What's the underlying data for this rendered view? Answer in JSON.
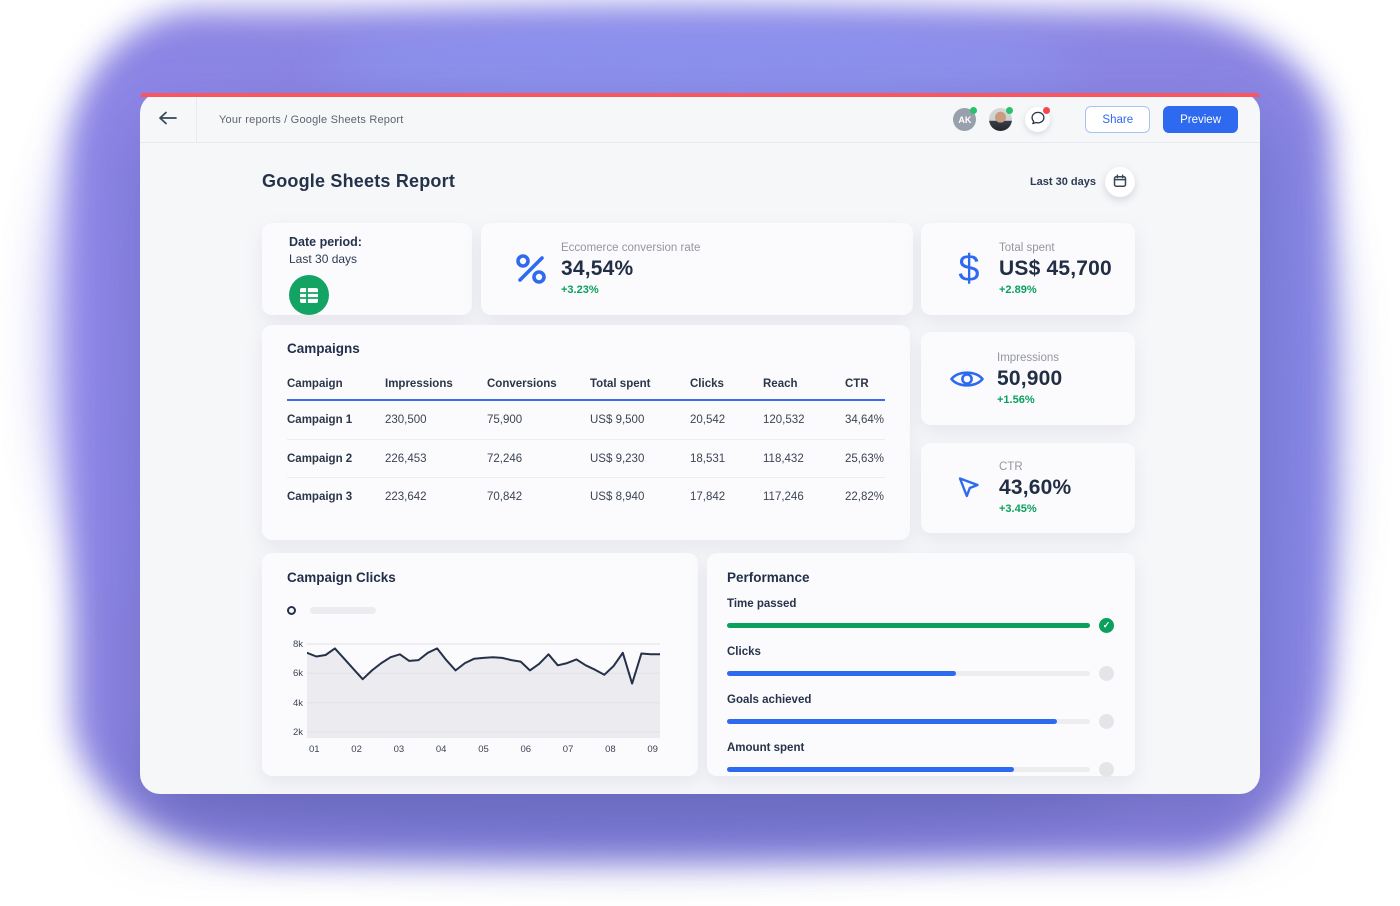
{
  "colors": {
    "accent_blue": "#2e6af0",
    "delta_green": "#0a9f5d",
    "progress_green": "#0ba05c",
    "red_accent_bar": "#fb5560",
    "blob_purple": "#8a87e6",
    "navy_text": "#24324a",
    "sheets_green": "#13a464"
  },
  "icons": {
    "back": "arrow-left-icon",
    "messages": "chat-bubble-icon",
    "calendar": "calendar-icon",
    "date_period_card": "spreadsheet-grid-icon",
    "conversion_card": "percent-icon",
    "total_spent_card": "dollar-icon",
    "impressions_card": "eye-icon",
    "ctr_card": "cursor-arrow-icon",
    "time_passed_indicator": "check-circle-icon"
  },
  "topbar": {
    "breadcrumb": "Your reports / Google Sheets Report",
    "avatar_initials": "AK",
    "share_label": "Share",
    "preview_label": "Preview"
  },
  "header": {
    "title": "Google Sheets Report",
    "date_range": "Last 30 days"
  },
  "cards": {
    "date_period": {
      "label": "Date period:",
      "value": "Last 30 days"
    },
    "conversion": {
      "label": "Eccomerce conversion rate",
      "value": "34,54%",
      "delta": "+3.23%"
    },
    "total_spent": {
      "label": "Total spent",
      "value": "US$ 45,700",
      "delta": "+2.89%"
    },
    "impressions": {
      "label": "Impressions",
      "value": "50,900",
      "delta": "+1.56%"
    },
    "ctr": {
      "label": "CTR",
      "value": "43,60%",
      "delta": "+3.45%"
    }
  },
  "campaigns": {
    "title": "Campaigns",
    "columns": [
      "Campaign",
      "Impressions",
      "Conversions",
      "Total spent",
      "Clicks",
      "Reach",
      "CTR"
    ],
    "rows": [
      {
        "campaign": "Campaign 1",
        "impressions": "230,500",
        "conversions": "75,900",
        "total_spent": "US$ 9,500",
        "clicks": "20,542",
        "reach": "120,532",
        "ctr": "34,64%"
      },
      {
        "campaign": "Campaign 2",
        "impressions": "226,453",
        "conversions": "72,246",
        "total_spent": "US$ 9,230",
        "clicks": "18,531",
        "reach": "118,432",
        "ctr": "25,63%"
      },
      {
        "campaign": "Campaign 3",
        "impressions": "223,642",
        "conversions": "70,842",
        "total_spent": "US$ 8,940",
        "clicks": "17,842",
        "reach": "117,246",
        "ctr": "22,82%"
      }
    ]
  },
  "chart_data": {
    "type": "line",
    "title": "Campaign Clicks",
    "legend_placeholder": true,
    "x_labels": [
      "01",
      "02",
      "03",
      "04",
      "05",
      "06",
      "07",
      "08",
      "09"
    ],
    "y_ticks": [
      "8k",
      "6k",
      "4k",
      "2k"
    ],
    "y_tick_values": [
      8000,
      6000,
      4000,
      2000
    ],
    "ylim": [
      2000,
      8000
    ],
    "grid": true,
    "line_color": "#25314a",
    "area_color": "#ececf0",
    "values": [
      7400,
      7150,
      7250,
      7700,
      7000,
      6300,
      5600,
      6200,
      6700,
      7100,
      7300,
      6850,
      6900,
      7400,
      7700,
      6900,
      6200,
      6700,
      7000,
      7050,
      7100,
      7050,
      6900,
      6800,
      6200,
      6650,
      7300,
      6550,
      6700,
      6950,
      6550,
      6250,
      5900,
      6500,
      7400,
      5300,
      7350,
      7300,
      7300
    ]
  },
  "performance": {
    "title": "Performance",
    "metrics": [
      {
        "label": "Time passed",
        "percent": 100,
        "color": "green",
        "complete": true
      },
      {
        "label": "Clicks",
        "percent": 63,
        "color": "blue",
        "complete": false
      },
      {
        "label": "Goals achieved",
        "percent": 91,
        "color": "blue",
        "complete": false
      },
      {
        "label": "Amount spent",
        "percent": 79,
        "color": "blue",
        "complete": false
      }
    ]
  }
}
